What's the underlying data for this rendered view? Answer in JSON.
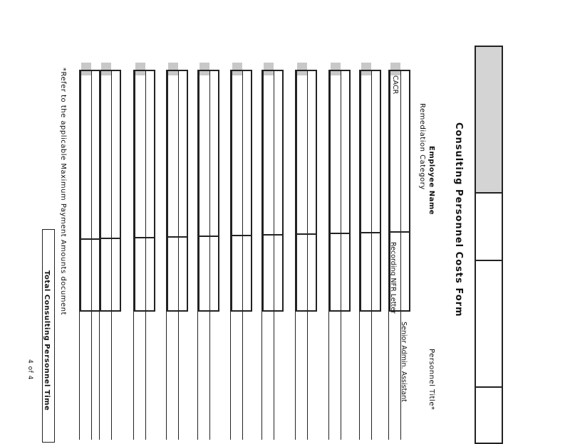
{
  "form": {
    "title": "Consulting Personnel Costs Form",
    "employee_name_label": "Employee Name",
    "remediation_category_label": "Remediation Category",
    "personnel_title_label": "Personnel Title*",
    "first_row": {
      "remediation_category": "CACR",
      "employee_task": "Recording NFR Letter",
      "personnel_title": "Senior Admin. Assistant"
    },
    "footnote": "*Refer to the applicable Maximum Payment Amounts document",
    "total_label": "Total Consulting Personnel Time",
    "page_number": "4 of 4"
  },
  "colors": {
    "header_shade": "#c8c8c8",
    "ink": "#222222"
  }
}
